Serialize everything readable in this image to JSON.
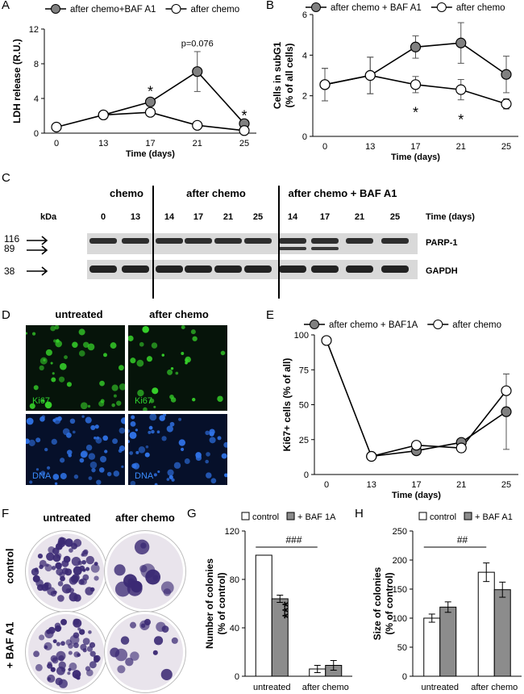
{
  "panel_letters": [
    "A",
    "B",
    "C",
    "D",
    "E",
    "F",
    "G",
    "H"
  ],
  "colors": {
    "treated": "#808080",
    "open": "#ffffff",
    "stroke": "#000000",
    "bar_control": "#ffffff",
    "bar_baf": "#8c8c8c"
  },
  "chart_data": [
    {
      "id": "A",
      "type": "line",
      "title": "",
      "xlabel": "Time (days)",
      "ylabel": "LDH release (R.U.)",
      "x": [
        0,
        13,
        17,
        21,
        25
      ],
      "xticks": [
        "0",
        "13",
        "17",
        "21",
        "25"
      ],
      "ylim": [
        0,
        12
      ],
      "yticks": [
        "0",
        "4",
        "8",
        "12"
      ],
      "series": [
        {
          "name": "after chemo+BAF A1",
          "marker": "filled",
          "x": [
            13,
            17,
            21,
            25
          ],
          "values": [
            2.1,
            3.6,
            7.1,
            1.1
          ],
          "err": [
            0,
            0,
            2.3,
            0
          ]
        },
        {
          "name": "after chemo",
          "marker": "open",
          "x": [
            0,
            13,
            17,
            21,
            25
          ],
          "values": [
            0.7,
            2.1,
            2.4,
            0.9,
            0.3
          ],
          "err": [
            0,
            0,
            0,
            0,
            0
          ]
        }
      ],
      "annotations": [
        {
          "text": "*",
          "x": 17,
          "y": 5.0
        },
        {
          "text": "p=0.076",
          "x": 21,
          "y": 10.0
        },
        {
          "text": "*",
          "x": 25,
          "y": 2.2
        }
      ],
      "legend": "top"
    },
    {
      "id": "B",
      "type": "line",
      "title": "",
      "xlabel": "Time (days)",
      "ylabel": "Cells in subG1 (% of all cells)",
      "x": [
        0,
        13,
        17,
        21,
        25
      ],
      "xticks": [
        "0",
        "13",
        "17",
        "21",
        "25"
      ],
      "ylim": [
        0,
        6
      ],
      "yticks": [
        "0",
        "2",
        "4",
        "6"
      ],
      "series": [
        {
          "name": "after chemo + BAF A1",
          "marker": "filled",
          "x": [
            0,
            13,
            17,
            21,
            25
          ],
          "values": [
            2.55,
            3.0,
            4.4,
            4.6,
            3.05
          ],
          "err": [
            0.8,
            0.9,
            0.55,
            1.0,
            0.9
          ]
        },
        {
          "name": "after chemo",
          "marker": "open",
          "x": [
            0,
            13,
            17,
            21,
            25
          ],
          "values": [
            2.55,
            3.0,
            2.55,
            2.3,
            1.6
          ],
          "err": [
            0.8,
            0.9,
            0.4,
            0.5,
            0.25
          ]
        }
      ],
      "annotations": [
        {
          "text": "*",
          "x": 17,
          "y": 1.25
        },
        {
          "text": "*",
          "x": 21,
          "y": 0.9
        }
      ],
      "legend": "top"
    },
    {
      "id": "E",
      "type": "line",
      "title": "",
      "xlabel": "Time (days)",
      "ylabel": "Ki67+ cells (% of all)",
      "x": [
        0,
        13,
        17,
        21,
        25
      ],
      "xticks": [
        "0",
        "13",
        "17",
        "21",
        "25"
      ],
      "ylim": [
        0,
        100
      ],
      "yticks": [
        "0",
        "25",
        "50",
        "75",
        "100"
      ],
      "series": [
        {
          "name": "after chemo + BAF1A",
          "marker": "filled",
          "x": [
            13,
            17,
            21,
            25
          ],
          "values": [
            13,
            17,
            23,
            45
          ],
          "err": [
            0,
            0,
            0,
            27
          ]
        },
        {
          "name": "after chemo",
          "marker": "open",
          "x": [
            0,
            13,
            17,
            21,
            25
          ],
          "values": [
            96,
            13,
            21,
            19,
            60
          ],
          "err": [
            0,
            0,
            0,
            0,
            12
          ]
        }
      ],
      "annotations": [],
      "legend": "top"
    },
    {
      "id": "G",
      "type": "bar",
      "title": "",
      "xlabel": "",
      "ylabel": "Number of colonies (% of control)",
      "categories": [
        "untreated",
        "after chemo"
      ],
      "ylim": [
        0,
        120
      ],
      "yticks": [
        "0",
        "40",
        "80",
        "120"
      ],
      "series": [
        {
          "name": "control",
          "values": [
            100,
            6
          ],
          "err": [
            0,
            3
          ]
        },
        {
          "name": "+ BAF 1A",
          "values": [
            64,
            9
          ],
          "err": [
            3,
            4
          ]
        }
      ],
      "annotations": [
        {
          "text": "***",
          "category": 0,
          "series": 1
        },
        {
          "text": "###",
          "bracket": [
            0,
            1
          ]
        }
      ],
      "legend": "top"
    },
    {
      "id": "H",
      "type": "bar",
      "title": "",
      "xlabel": "",
      "ylabel": "Size of colonies (% of control)",
      "categories": [
        "untreated",
        "after chemo"
      ],
      "ylim": [
        0,
        250
      ],
      "yticks": [
        "0",
        "50",
        "100",
        "150",
        "200",
        "250"
      ],
      "series": [
        {
          "name": "control",
          "values": [
            100,
            179
          ],
          "err": [
            7,
            16
          ]
        },
        {
          "name": "+ BAF A1",
          "values": [
            119,
            149
          ],
          "err": [
            9,
            13
          ]
        }
      ],
      "annotations": [
        {
          "text": "##",
          "bracket": [
            0,
            1
          ]
        }
      ],
      "legend": "top"
    }
  ],
  "blot": {
    "groups": [
      "chemo",
      "after chemo",
      "after chemo + BAF A1"
    ],
    "time_label": "Time (days)",
    "kda_label": "kDa",
    "lanes": [
      "0",
      "13",
      "14",
      "17",
      "21",
      "25",
      "14",
      "17",
      "21",
      "25"
    ],
    "markers": [
      "116",
      "89",
      "38"
    ],
    "bands": [
      "PARP-1",
      "GAPDH"
    ]
  },
  "micro": {
    "columns": [
      "untreated",
      "after chemo"
    ],
    "stains": [
      "Ki67",
      "DNA"
    ]
  },
  "colony": {
    "columns": [
      "untreated",
      "after chemo"
    ],
    "rows": [
      "control",
      "+ BAF A1"
    ]
  }
}
